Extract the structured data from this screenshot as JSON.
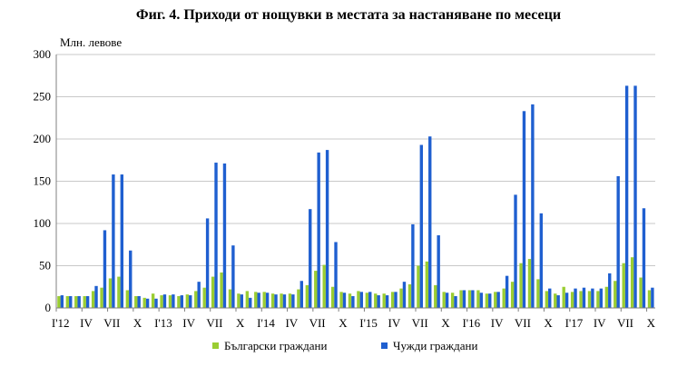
{
  "chart_data": {
    "type": "bar",
    "title": "Фиг. 4. Приходи от нощувки в местата за настаняване по месеци",
    "ylabel": "Млн. левове",
    "xlabel": "",
    "ylim": [
      0,
      300
    ],
    "yticks": [
      0,
      50,
      100,
      150,
      200,
      250,
      300
    ],
    "grid": "horizontal",
    "legend_placement": "bottom",
    "x_tick_labels": [
      "I'12",
      "IV",
      "VII",
      "X",
      "I'13",
      "IV",
      "VII",
      "X",
      "I'14",
      "IV",
      "VII",
      "X",
      "I'15",
      "IV",
      "VII",
      "X",
      "I'16",
      "IV",
      "VII",
      "X",
      "I'17",
      "IV",
      "VII",
      "X"
    ],
    "categories": [
      "I'12",
      "II",
      "III",
      "IV",
      "V",
      "VI",
      "VII",
      "VIII",
      "IX",
      "X",
      "XI",
      "XII",
      "I'13",
      "II",
      "III",
      "IV",
      "V",
      "VI",
      "VII",
      "VIII",
      "IX",
      "X",
      "XI",
      "XII",
      "I'14",
      "II",
      "III",
      "IV",
      "V",
      "VI",
      "VII",
      "VIII",
      "IX",
      "X",
      "XI",
      "XII",
      "I'15",
      "II",
      "III",
      "IV",
      "V",
      "VI",
      "VII",
      "VIII",
      "IX",
      "X",
      "XI",
      "XII",
      "I'16",
      "II",
      "III",
      "IV",
      "V",
      "VI",
      "VII",
      "VIII",
      "IX",
      "X",
      "XI",
      "XII",
      "I'17",
      "II",
      "III",
      "IV",
      "V",
      "VI",
      "VII",
      "VIII",
      "IX",
      "X"
    ],
    "series": [
      {
        "name": "Български граждани",
        "color": "#9ACD32",
        "values": [
          14,
          14,
          14,
          14,
          20,
          24,
          35,
          37,
          21,
          14,
          12,
          17,
          15,
          15,
          14,
          16,
          20,
          24,
          37,
          42,
          22,
          17,
          20,
          19,
          19,
          17,
          17,
          17,
          22,
          27,
          44,
          51,
          25,
          19,
          17,
          20,
          18,
          17,
          17,
          19,
          23,
          28,
          50,
          55,
          27,
          19,
          18,
          21,
          21,
          21,
          17,
          19,
          23,
          31,
          53,
          58,
          34,
          20,
          17,
          25,
          19,
          20,
          20,
          20,
          25,
          32,
          53,
          60,
          36,
          21
        ]
      },
      {
        "name": "Чужди граждани",
        "color": "#1F5FD0",
        "values": [
          15,
          14,
          14,
          14,
          26,
          92,
          158,
          158,
          68,
          14,
          11,
          11,
          16,
          16,
          15,
          15,
          31,
          106,
          172,
          171,
          74,
          16,
          12,
          18,
          18,
          16,
          16,
          16,
          32,
          117,
          184,
          187,
          78,
          18,
          14,
          19,
          19,
          15,
          15,
          19,
          31,
          99,
          193,
          203,
          86,
          18,
          14,
          21,
          21,
          18,
          17,
          19,
          38,
          134,
          233,
          241,
          112,
          23,
          15,
          18,
          23,
          24,
          23,
          23,
          41,
          156,
          263,
          263,
          118,
          24
        ]
      }
    ]
  }
}
